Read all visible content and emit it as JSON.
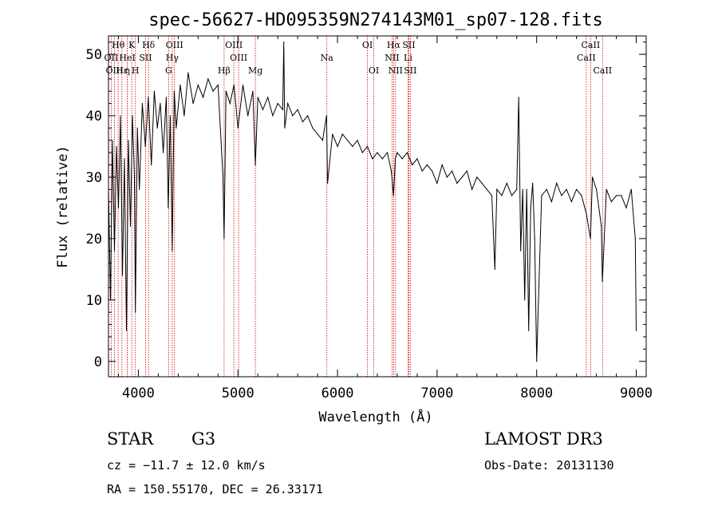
{
  "chart_data": {
    "type": "line",
    "title": "spec-56627-HD095359N274143M01_sp07-128.fits",
    "xlabel": "Wavelength (Å)",
    "ylabel": "Flux (relative)",
    "xlim": [
      3700,
      9100
    ],
    "ylim": [
      -2.5,
      53
    ],
    "x_ticks": [
      4000,
      5000,
      6000,
      7000,
      8000,
      9000
    ],
    "x_tick_labels": [
      "4000",
      "5000",
      "6000",
      "7000",
      "8000",
      "9000"
    ],
    "y_ticks": [
      0,
      10,
      20,
      30,
      40,
      50
    ],
    "y_tick_labels": [
      "0",
      "10",
      "20",
      "30",
      "40",
      "50"
    ],
    "series": [
      {
        "name": "flux",
        "color": "#000000",
        "x": [
          3700,
          3720,
          3740,
          3760,
          3780,
          3800,
          3820,
          3840,
          3860,
          3880,
          3900,
          3920,
          3940,
          3960,
          3970,
          3990,
          4010,
          4040,
          4070,
          4100,
          4130,
          4160,
          4190,
          4220,
          4250,
          4280,
          4300,
          4320,
          4340,
          4360,
          4380,
          4420,
          4460,
          4500,
          4550,
          4600,
          4650,
          4700,
          4750,
          4800,
          4850,
          4861,
          4880,
          4920,
          4960,
          5000,
          5050,
          5100,
          5150,
          5175,
          5200,
          5250,
          5300,
          5350,
          5400,
          5450,
          5460,
          5470,
          5500,
          5550,
          5600,
          5650,
          5700,
          5750,
          5800,
          5850,
          5890,
          5900,
          5950,
          6000,
          6050,
          6100,
          6150,
          6200,
          6250,
          6300,
          6350,
          6400,
          6450,
          6500,
          6540,
          6563,
          6580,
          6600,
          6650,
          6700,
          6750,
          6800,
          6850,
          6900,
          6950,
          7000,
          7050,
          7100,
          7150,
          7200,
          7250,
          7300,
          7350,
          7400,
          7450,
          7500,
          7550,
          7580,
          7600,
          7650,
          7700,
          7750,
          7800,
          7820,
          7840,
          7860,
          7880,
          7900,
          7920,
          7940,
          7960,
          7980,
          8000,
          8050,
          8100,
          8150,
          8200,
          8250,
          8300,
          8350,
          8400,
          8450,
          8500,
          8540,
          8560,
          8600,
          8650,
          8660,
          8700,
          8750,
          8800,
          8850,
          8900,
          8950,
          8990,
          9000
        ],
        "y": [
          28,
          10,
          36,
          18,
          35,
          25,
          40,
          14,
          33,
          5,
          36,
          22,
          40,
          30,
          8,
          38,
          28,
          42,
          35,
          43,
          32,
          44,
          38,
          42,
          34,
          43,
          25,
          40,
          18,
          44,
          38,
          45,
          40,
          47,
          42,
          45,
          43,
          46,
          44,
          45,
          30,
          20,
          44,
          42,
          45,
          38,
          45,
          40,
          44,
          32,
          43,
          41,
          43,
          40,
          42,
          41,
          52,
          38,
          42,
          40,
          41,
          39,
          40,
          38,
          37,
          36,
          40,
          29,
          37,
          35,
          37,
          36,
          35,
          36,
          34,
          35,
          33,
          34,
          33,
          34,
          31,
          27,
          33,
          34,
          33,
          34,
          32,
          33,
          31,
          32,
          31,
          29,
          32,
          30,
          31,
          29,
          30,
          31,
          28,
          30,
          29,
          28,
          27,
          15,
          28,
          27,
          29,
          27,
          28,
          43,
          18,
          28,
          10,
          28,
          5,
          25,
          29,
          20,
          0,
          27,
          28,
          26,
          29,
          27,
          28,
          26,
          28,
          27,
          24,
          20,
          30,
          28,
          22,
          13,
          28,
          26,
          27,
          27,
          25,
          28,
          20,
          5
        ]
      }
    ],
    "line_markers": [
      {
        "label": "Hθ",
        "wavelength": 3797,
        "row": 1
      },
      {
        "label": "OII",
        "wavelength": 3727,
        "row": 2
      },
      {
        "label": "OIII",
        "wavelength": 3760,
        "row": 3
      },
      {
        "label": "Hε",
        "wavelength": 3835,
        "row": 3
      },
      {
        "label": "K",
        "wavelength": 3934,
        "row": 1
      },
      {
        "label": "H",
        "wavelength": 3970,
        "row": 3
      },
      {
        "label": "η",
        "wavelength": 3889,
        "row": 3
      },
      {
        "label": "Hδ",
        "wavelength": 4102,
        "row": 1
      },
      {
        "label": "HeI",
        "wavelength": 3889,
        "row": 2
      },
      {
        "label": "SII",
        "wavelength": 4072,
        "row": 2
      },
      {
        "label": "OIII",
        "wavelength": 4363,
        "row": 1
      },
      {
        "label": "Hγ",
        "wavelength": 4340,
        "row": 2
      },
      {
        "label": "G",
        "wavelength": 4304,
        "row": 3
      },
      {
        "label": "OIII",
        "wavelength": 4959,
        "row": 1
      },
      {
        "label": "OIII",
        "wavelength": 5007,
        "row": 2
      },
      {
        "label": "Hβ",
        "wavelength": 4861,
        "row": 3
      },
      {
        "label": "Mg",
        "wavelength": 5175,
        "row": 3
      },
      {
        "label": "Na",
        "wavelength": 5893,
        "row": 2
      },
      {
        "label": "OI",
        "wavelength": 6300,
        "row": 1
      },
      {
        "label": "OI",
        "wavelength": 6364,
        "row": 3
      },
      {
        "label": "Hα",
        "wavelength": 6563,
        "row": 1
      },
      {
        "label": "NII",
        "wavelength": 6548,
        "row": 2
      },
      {
        "label": "NII",
        "wavelength": 6583,
        "row": 3
      },
      {
        "label": "SII",
        "wavelength": 6716,
        "row": 1
      },
      {
        "label": "Li",
        "wavelength": 6708,
        "row": 2
      },
      {
        "label": "SII",
        "wavelength": 6731,
        "row": 3
      },
      {
        "label": "CaII",
        "wavelength": 8542,
        "row": 1
      },
      {
        "label": "CaII",
        "wavelength": 8498,
        "row": 2
      },
      {
        "label": "CaII",
        "wavelength": 8662,
        "row": 3
      }
    ],
    "marker_color": "#cc0000"
  },
  "info": {
    "object_type": "STAR",
    "subclass": "G3",
    "survey": "LAMOST DR3",
    "cz": "cz = −11.7 ± 12.0 km/s",
    "obs_date": "Obs-Date: 20131130",
    "coords": "RA = 150.55170, DEC =  26.33171"
  }
}
